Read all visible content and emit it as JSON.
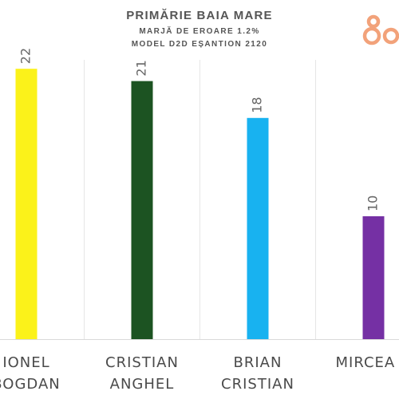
{
  "chart_data": {
    "type": "bar",
    "title": "PRIMĂRIE BAIA MARE",
    "subtitle": "MARJĂ DE EROARE 1.2%",
    "subtitle2": "MODEL D2D EȘANTION 2120",
    "categories": [
      [
        "IONEL",
        "BOGDAN"
      ],
      [
        "CRISTIAN",
        "ANGHEL"
      ],
      [
        "BRIAN",
        "CRISTIAN"
      ],
      [
        "MIRCEA C",
        ""
      ]
    ],
    "values": [
      22,
      21,
      18,
      10
    ],
    "colors": [
      "#fbf21a",
      "#1c5322",
      "#18b2f0",
      "#7530a4"
    ],
    "ylim": [
      0,
      25
    ],
    "grid": true
  },
  "logo": {
    "icon": "circles-logo-icon",
    "color": "#f2a27a"
  }
}
